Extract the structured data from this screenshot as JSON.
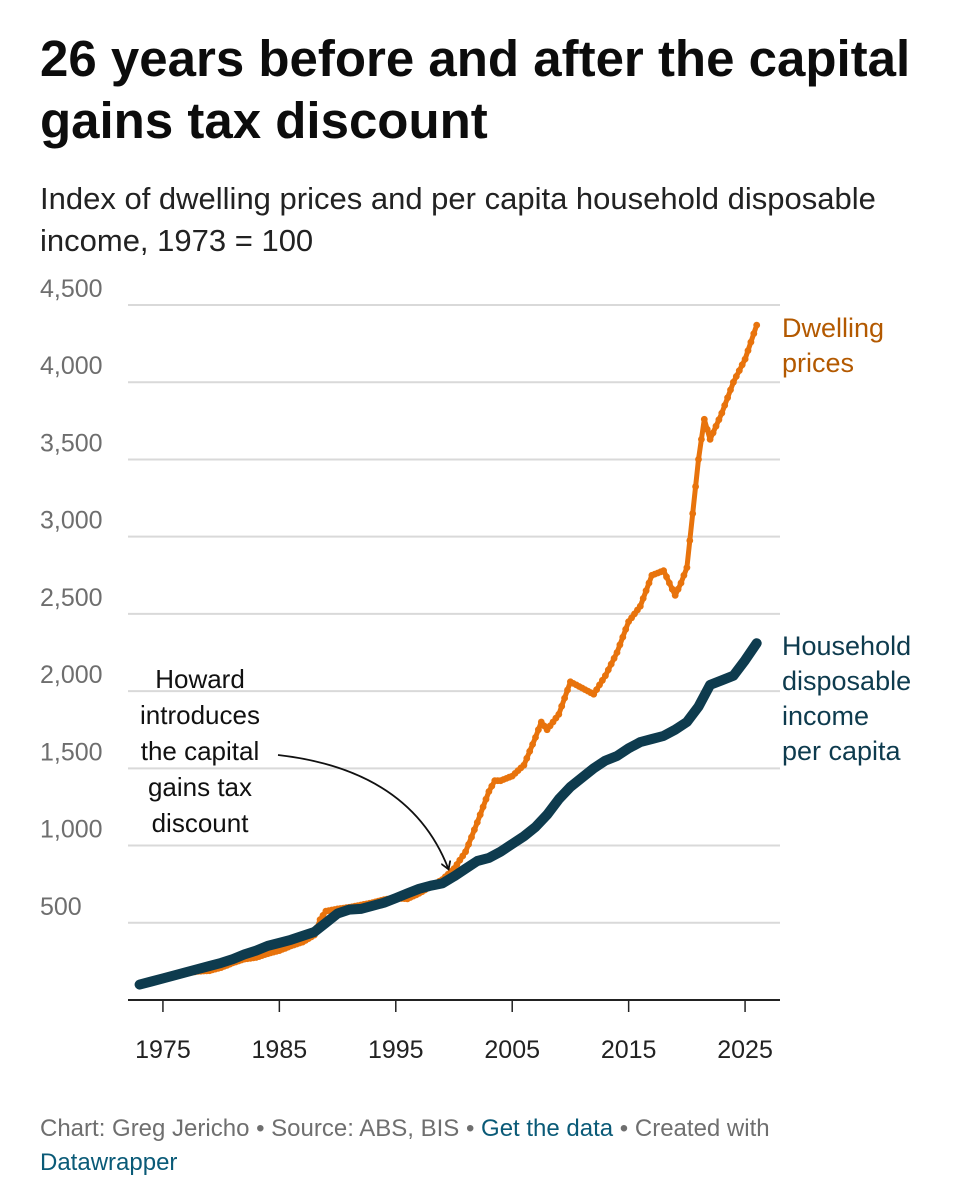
{
  "title": "26 years before and after the capital gains tax discount",
  "subtitle": "Index of dwelling prices and per capita household disposable income, 1973 = 100",
  "footer": {
    "chart_credit": "Chart: Greg Jericho",
    "separator": " • ",
    "source": "Source: ABS, BIS",
    "data_link": "Get the data",
    "created_with": "Created with",
    "tool_link": "Datawrapper"
  },
  "colors": {
    "dwelling": "#e8730c",
    "dwelling_label": "#b35900",
    "income": "#0e3b4e",
    "grid": "#d9d9d9",
    "axis_text": "#6e6e6e"
  },
  "chart_data": {
    "type": "line",
    "title": "26 years before and after the capital gains tax discount",
    "subtitle": "Index of dwelling prices and per capita household disposable income, 1973 = 100",
    "xlabel": "",
    "ylabel": "",
    "xlim": [
      1972,
      2028
    ],
    "ylim": [
      0,
      4500
    ],
    "x_ticks": [
      1975,
      1985,
      1995,
      2005,
      2015,
      2025
    ],
    "y_ticks": [
      500,
      1000,
      1500,
      2000,
      2500,
      3000,
      3500,
      4000,
      4500
    ],
    "x_tick_labels": [
      "1975",
      "1985",
      "1995",
      "2005",
      "2015",
      "2025"
    ],
    "y_tick_labels": [
      "500",
      "1,000",
      "1,500",
      "2,000",
      "2,500",
      "3,000",
      "3,500",
      "4,000",
      "4,500"
    ],
    "grid": "horizontal",
    "legend": "direct-labels-right",
    "series": [
      {
        "name": "Dwelling prices",
        "label_lines": [
          "Dwelling",
          "prices"
        ],
        "x": [
          1973,
          1974,
          1975,
          1976,
          1977,
          1978,
          1979,
          1980,
          1981,
          1982,
          1983,
          1984,
          1985,
          1986,
          1987,
          1988,
          1988.5,
          1989,
          1990,
          1991,
          1992,
          1993,
          1994,
          1995,
          1996,
          1997,
          1998,
          1999,
          2000,
          2001,
          2002,
          2003,
          2003.5,
          2004,
          2005,
          2006,
          2007,
          2007.5,
          2008,
          2009,
          2010,
          2011,
          2012,
          2013,
          2014,
          2015,
          2016,
          2017,
          2018,
          2019,
          2019.5,
          2020,
          2021,
          2021.5,
          2022,
          2023,
          2024,
          2025,
          2026
        ],
        "values": [
          100,
          125,
          145,
          160,
          175,
          185,
          190,
          210,
          240,
          265,
          275,
          300,
          320,
          350,
          375,
          420,
          520,
          575,
          590,
          600,
          615,
          630,
          650,
          660,
          655,
          690,
          735,
          780,
          850,
          960,
          1150,
          1350,
          1420,
          1420,
          1450,
          1520,
          1700,
          1800,
          1750,
          1850,
          2060,
          2020,
          1980,
          2100,
          2250,
          2450,
          2550,
          2750,
          2780,
          2620,
          2700,
          2800,
          3500,
          3760,
          3630,
          3800,
          4000,
          4150,
          4370
        ]
      },
      {
        "name": "Household disposable income per capita",
        "label_lines": [
          "Household",
          "disposable",
          "income",
          "per capita"
        ],
        "x": [
          1973,
          1974,
          1975,
          1976,
          1977,
          1978,
          1979,
          1980,
          1981,
          1982,
          1983,
          1984,
          1985,
          1986,
          1987,
          1988,
          1989,
          1990,
          1991,
          1992,
          1993,
          1994,
          1995,
          1996,
          1997,
          1998,
          1999,
          2000,
          2001,
          2002,
          2003,
          2004,
          2005,
          2006,
          2007,
          2008,
          2009,
          2010,
          2011,
          2012,
          2013,
          2014,
          2015,
          2016,
          2017,
          2018,
          2019,
          2020,
          2021,
          2022,
          2023,
          2024,
          2025,
          2026
        ],
        "values": [
          100,
          120,
          140,
          160,
          180,
          200,
          220,
          240,
          265,
          295,
          320,
          350,
          370,
          390,
          415,
          440,
          500,
          560,
          585,
          590,
          610,
          630,
          660,
          690,
          720,
          740,
          755,
          800,
          850,
          900,
          920,
          960,
          1010,
          1060,
          1120,
          1200,
          1300,
          1380,
          1440,
          1500,
          1550,
          1580,
          1630,
          1670,
          1690,
          1710,
          1750,
          1800,
          1900,
          2040,
          2070,
          2100,
          2200,
          2310
        ]
      }
    ],
    "annotations": [
      {
        "text_lines": [
          "Howard",
          "introduces",
          "the capital",
          "gains tax",
          "discount"
        ],
        "x": 1999.5,
        "y": 800
      }
    ]
  }
}
